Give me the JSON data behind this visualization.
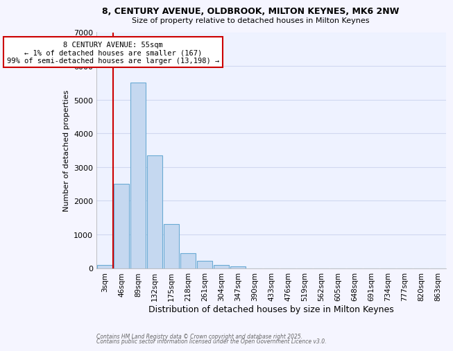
{
  "title1": "8, CENTURY AVENUE, OLDBROOK, MILTON KEYNES, MK6 2NW",
  "title2": "Size of property relative to detached houses in Milton Keynes",
  "xlabel": "Distribution of detached houses by size in Milton Keynes",
  "ylabel": "Number of detached properties",
  "categories": [
    "3sqm",
    "46sqm",
    "89sqm",
    "132sqm",
    "175sqm",
    "218sqm",
    "261sqm",
    "304sqm",
    "347sqm",
    "390sqm",
    "433sqm",
    "476sqm",
    "519sqm",
    "562sqm",
    "605sqm",
    "648sqm",
    "691sqm",
    "734sqm",
    "777sqm",
    "820sqm",
    "863sqm"
  ],
  "values": [
    100,
    2500,
    5500,
    3350,
    1300,
    450,
    220,
    100,
    50,
    0,
    0,
    0,
    0,
    0,
    0,
    0,
    0,
    0,
    0,
    0,
    0
  ],
  "bar_color": "#c5d8f0",
  "bar_edge_color": "#6aaad4",
  "red_line_x": 0.5,
  "annotation_title": "8 CENTURY AVENUE: 55sqm",
  "annotation_line1": "← 1% of detached houses are smaller (167)",
  "annotation_line2": "99% of semi-detached houses are larger (13,198) →",
  "annotation_box_color": "#ffffff",
  "annotation_border_color": "#cc0000",
  "red_line_color": "#cc0000",
  "ylim": [
    0,
    7000
  ],
  "yticks": [
    0,
    1000,
    2000,
    3000,
    4000,
    5000,
    6000,
    7000
  ],
  "footnote1": "Contains HM Land Registry data © Crown copyright and database right 2025.",
  "footnote2": "Contains public sector information licensed under the Open Government Licence v3.0.",
  "background_color": "#f5f5ff",
  "grid_color": "#d0d8f0",
  "plot_bg_color": "#eef2ff"
}
